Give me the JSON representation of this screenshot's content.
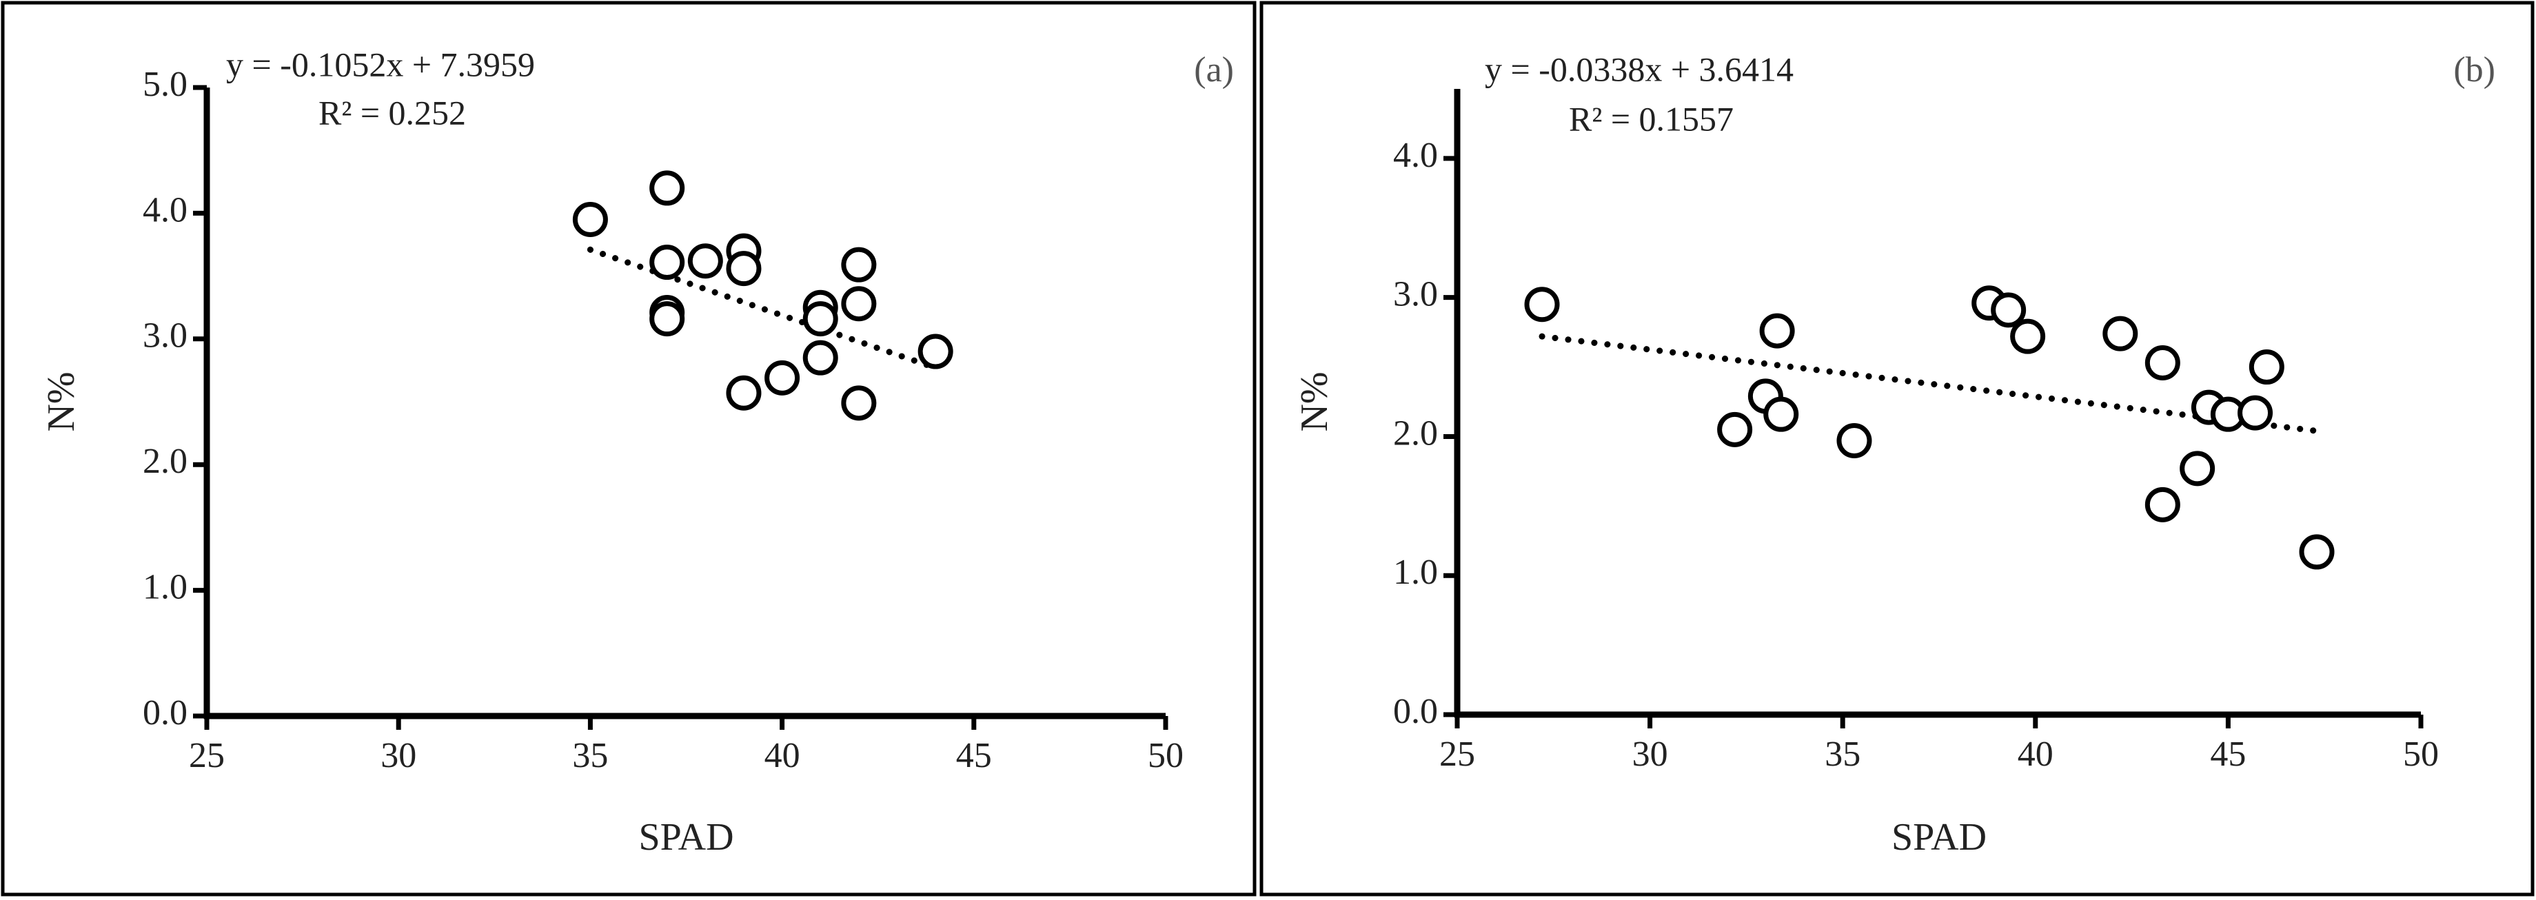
{
  "chart_data": [
    {
      "type": "scatter",
      "x_label": "SPAD",
      "y_label": "N%",
      "equation": "y = -0.1052x + 7.3959",
      "r_squared": "R² = 0.252",
      "panel_label": "(a)",
      "xlim": [
        25,
        50
      ],
      "xticks": [
        25,
        30,
        35,
        40,
        45,
        50
      ],
      "ylim": [
        0,
        5
      ],
      "yticks": [
        {
          "value": 0,
          "label": "0.0"
        },
        {
          "value": 1,
          "label": "1.0"
        },
        {
          "value": 2,
          "label": "2.0"
        },
        {
          "value": 3,
          "label": "3.0"
        },
        {
          "value": 4,
          "label": "4.0"
        },
        {
          "value": 5,
          "label": "5.0"
        }
      ],
      "marker_color": "#000000",
      "series": [
        {
          "x": [
            35,
            37,
            37,
            37,
            37,
            38,
            39,
            39,
            39,
            40,
            41,
            41,
            41,
            42,
            42,
            42,
            44
          ],
          "values": [
            3.95,
            4.2,
            3.61,
            3.21,
            3.16,
            3.62,
            3.7,
            3.56,
            2.57,
            2.69,
            3.25,
            3.16,
            2.85,
            3.59,
            3.28,
            2.49,
            2.9
          ]
        }
      ],
      "trendline": {
        "x": [
          35,
          44
        ],
        "values": [
          3.71,
          2.77
        ]
      }
    },
    {
      "type": "scatter",
      "x_label": "SPAD",
      "y_label": "N%",
      "equation": "y = -0.0338x + 3.6414",
      "r_squared": "R² = 0.1557",
      "panel_label": "(b)",
      "xlim": [
        25,
        50
      ],
      "xticks": [
        25,
        30,
        35,
        40,
        45,
        50
      ],
      "ylim": [
        0,
        4.5
      ],
      "yticks": [
        {
          "value": 0,
          "label": "0.0"
        },
        {
          "value": 1,
          "label": "1.0"
        },
        {
          "value": 2,
          "label": "2.0"
        },
        {
          "value": 3,
          "label": "3.0"
        },
        {
          "value": 4,
          "label": "4.0"
        }
      ],
      "marker_color": "#000000",
      "series": [
        {
          "x": [
            27.2,
            32.2,
            33.0,
            33.3,
            33.4,
            35.3,
            38.8,
            39.3,
            39.8,
            42.2,
            43.3,
            43.3,
            44.2,
            44.5,
            45.0,
            45.7,
            46.0,
            47.3
          ],
          "values": [
            2.95,
            2.05,
            2.29,
            2.76,
            2.16,
            1.97,
            2.96,
            2.91,
            2.72,
            2.74,
            2.53,
            1.51,
            1.77,
            2.21,
            2.16,
            2.17,
            2.5,
            1.17
          ]
        }
      ],
      "trendline": {
        "x": [
          27.2,
          47.3
        ],
        "values": [
          2.72,
          2.04
        ]
      }
    }
  ]
}
